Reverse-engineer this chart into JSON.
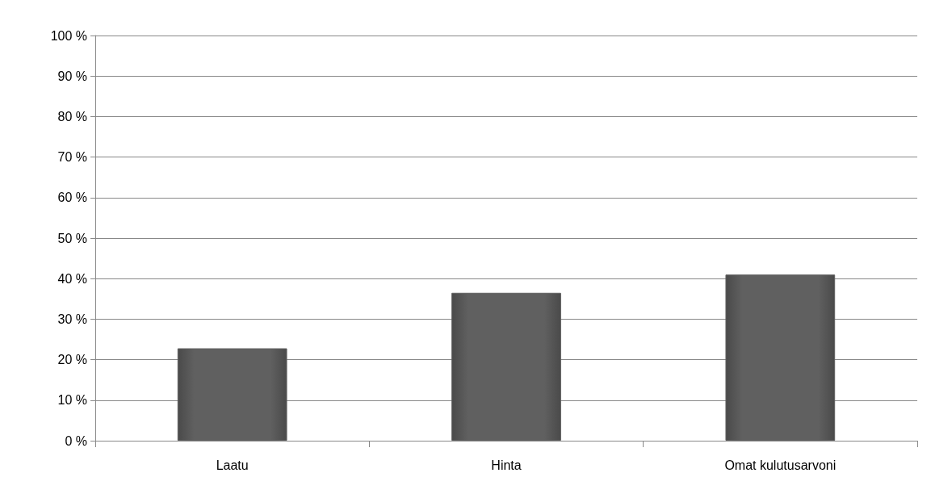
{
  "chart_data": {
    "type": "bar",
    "categories": [
      "Laatu",
      "Hinta",
      "Omat kulutusarvoni"
    ],
    "values": [
      22.8,
      36.5,
      41
    ],
    "color": "#606060",
    "ylim": [
      0,
      100
    ],
    "yticks": [
      {
        "value": 0,
        "label": "0 %"
      },
      {
        "value": 10,
        "label": "10 %"
      },
      {
        "value": 20,
        "label": "20 %"
      },
      {
        "value": 30,
        "label": "30 %"
      },
      {
        "value": 40,
        "label": "40 %"
      },
      {
        "value": 50,
        "label": "50 %"
      },
      {
        "value": 60,
        "label": "60 %"
      },
      {
        "value": 70,
        "label": "70 %"
      },
      {
        "value": 80,
        "label": "80 %"
      },
      {
        "value": 90,
        "label": "90 %"
      },
      {
        "value": 100,
        "label": "100 %"
      }
    ],
    "grid": "y"
  }
}
